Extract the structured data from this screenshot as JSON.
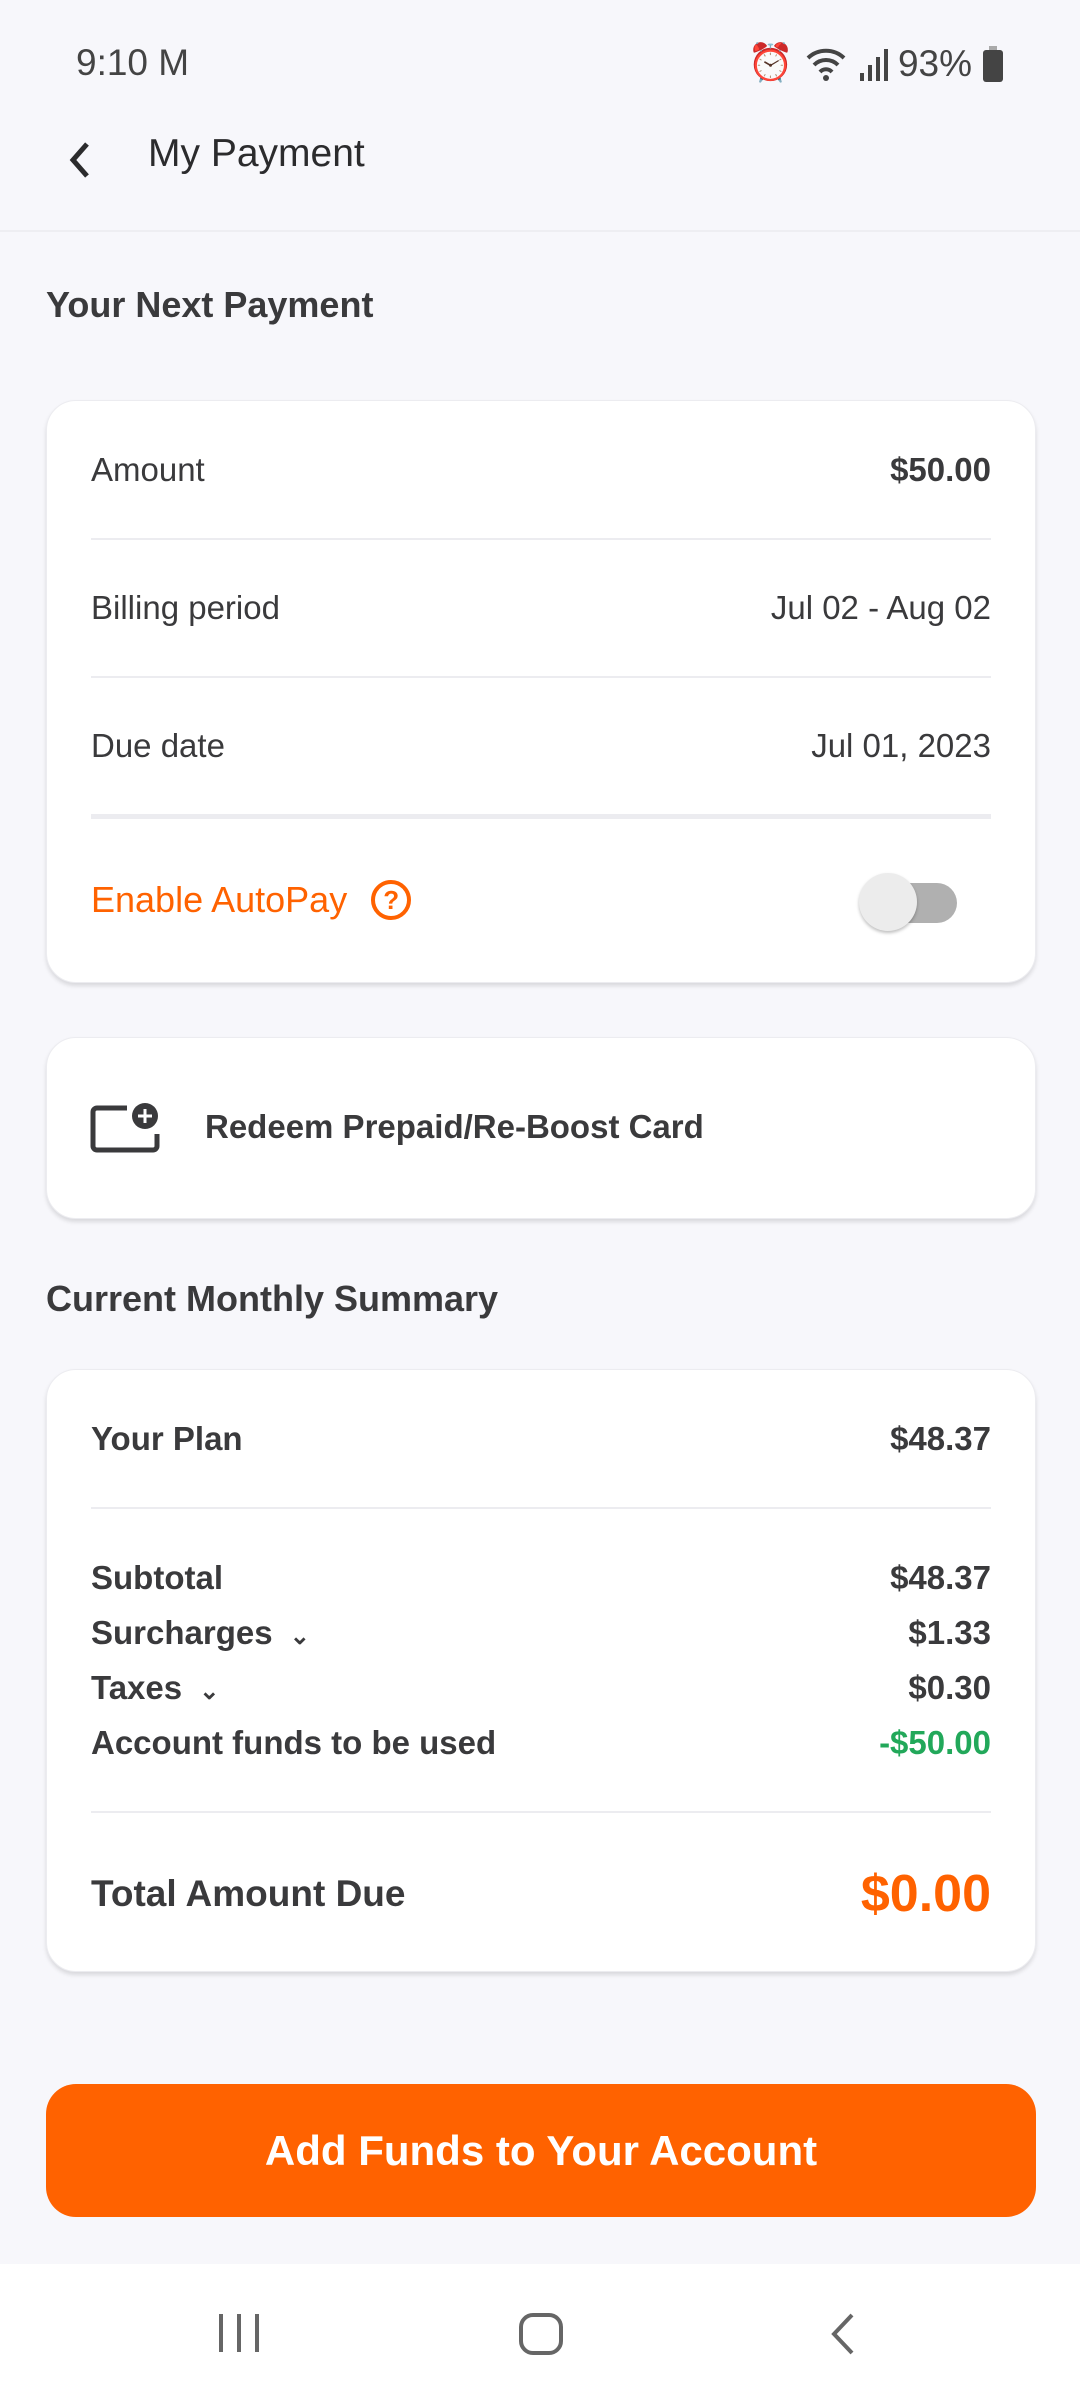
{
  "status_bar": {
    "time": "9:10",
    "battery": "93%",
    "icons": [
      "gmail-icon",
      "alarm-icon",
      "wifi-icon",
      "signal-icon",
      "battery-icon"
    ]
  },
  "header": {
    "title": "My Payment",
    "back_icon": "chevron-left-icon"
  },
  "next_payment": {
    "title": "Your Next Payment",
    "rows": [
      {
        "label": "Amount",
        "value": "$50.00"
      },
      {
        "label": "Billing period",
        "value": "Jul 02 - Aug 02"
      },
      {
        "label": "Due date",
        "value": "Jul 01, 2023"
      }
    ],
    "autopay": {
      "label": "Enable AutoPay",
      "enabled": false
    }
  },
  "redeem": {
    "label": "Redeem Prepaid/Re-Boost Card",
    "icon": "card-add-icon"
  },
  "summary": {
    "title": "Current Monthly Summary",
    "plan": {
      "label": "Your Plan",
      "value": "$48.37"
    },
    "lines": [
      {
        "label": "Subtotal",
        "value": "$48.37"
      },
      {
        "label": "Surcharges",
        "value": "$1.33"
      },
      {
        "label": "Taxes",
        "value": "$0.30"
      },
      {
        "label": "Account funds to be used",
        "value": "-$50.00"
      }
    ],
    "total": {
      "label": "Total Amount Due",
      "value": "$0.00"
    }
  },
  "add_funds_label": "Add Funds to Your Account",
  "colors": {
    "accent": "#ff6200",
    "credit": "#22a85a",
    "background": "#f7f7fb"
  }
}
